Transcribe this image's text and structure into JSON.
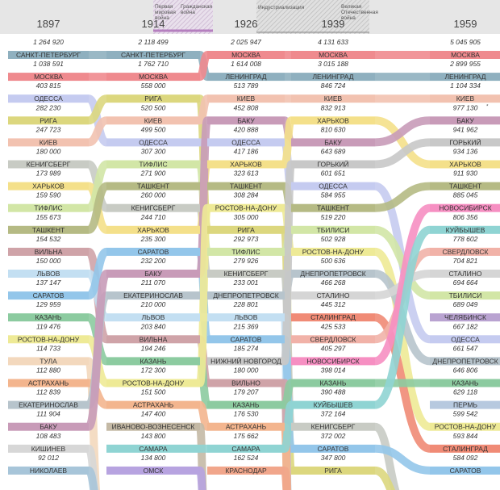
{
  "chart_data": {
    "type": "bump",
    "years": [
      "1897",
      "1914",
      "1926",
      "1939",
      "1959"
    ],
    "periods": [
      {
        "label": "Первая мировая война"
      },
      {
        "label": "Гражданская война"
      },
      {
        "label": "Индустриализация"
      },
      {
        "label": "Великая Отечественная война"
      }
    ],
    "columns": [
      [
        {
          "city": "САНКТ-ПЕТЕРБУРГ",
          "value": "1 264 920"
        },
        {
          "city": "МОСКВА",
          "value": "1 038 591"
        },
        {
          "city": "ОДЕССА",
          "value": "403 815"
        },
        {
          "city": "РИГА",
          "value": "282 230"
        },
        {
          "city": "КИЕВ",
          "value": "247 723"
        },
        {
          "city": "КЕНИГСБЕРГ",
          "value": "180 000"
        },
        {
          "city": "ХАРЬКОВ",
          "value": "173 989"
        },
        {
          "city": "ТИФЛИС",
          "value": "159 590"
        },
        {
          "city": "ТАШКЕНТ",
          "value": "155 673"
        },
        {
          "city": "ВИЛЬНА",
          "value": "154 532"
        },
        {
          "city": "ЛЬВОВ",
          "value": "150 000"
        },
        {
          "city": "САРАТОВ",
          "value": "137 147"
        },
        {
          "city": "КАЗАНЬ",
          "value": "129 959"
        },
        {
          "city": "РОСТОВ-НА-ДОНУ",
          "value": "119 476"
        },
        {
          "city": "ТУЛА",
          "value": "114 733"
        },
        {
          "city": "АСТРАХАНЬ",
          "value": "112 880"
        },
        {
          "city": "ЕКАТЕРИНОСЛАВ",
          "value": "112 839"
        },
        {
          "city": "БАКУ",
          "value": "111 904"
        },
        {
          "city": "КИШИНЕВ",
          "value": "108 483"
        },
        {
          "city": "НИКОЛАЕВ",
          "value": "92 012"
        }
      ],
      [
        {
          "city": "САНКТ-ПЕТЕРБУРГ",
          "value": "2 118 499"
        },
        {
          "city": "МОСКВА",
          "value": "1 762 710"
        },
        {
          "city": "РИГА",
          "value": "558 000"
        },
        {
          "city": "КИЕВ",
          "value": "520 500"
        },
        {
          "city": "ОДЕССА",
          "value": "499 500"
        },
        {
          "city": "ТИФЛИС",
          "value": "307 300"
        },
        {
          "city": "ТАШКЕНТ",
          "value": "271 900"
        },
        {
          "city": "КЕНИГСБЕРГ",
          "value": "260 000"
        },
        {
          "city": "ХАРЬКОВ",
          "value": "244 710"
        },
        {
          "city": "САРАТОВ",
          "value": "235 300"
        },
        {
          "city": "БАКУ",
          "value": "232 200"
        },
        {
          "city": "ЕКАТЕРИНОСЛАВ",
          "value": "211 070"
        },
        {
          "city": "ЛЬВОВ",
          "value": "210 000"
        },
        {
          "city": "ВИЛЬНА",
          "value": "203 840"
        },
        {
          "city": "КАЗАНЬ",
          "value": "194 246"
        },
        {
          "city": "РОСТОВ-НА-ДОНУ",
          "value": "172 300"
        },
        {
          "city": "АСТРАХАНЬ",
          "value": "151 500"
        },
        {
          "city": "ИВАНОВО-ВОЗНЕСЕНСК",
          "value": "147 400"
        },
        {
          "city": "САМАРА",
          "value": "143 800"
        },
        {
          "city": "ОМСК",
          "value": "134 800"
        }
      ],
      [
        {
          "city": "МОСКВА",
          "value": "2 025 947"
        },
        {
          "city": "ЛЕНИНГРАД",
          "value": "1 614 008"
        },
        {
          "city": "КИЕВ",
          "value": "513 789"
        },
        {
          "city": "БАКУ",
          "value": "452 808"
        },
        {
          "city": "ОДЕССА",
          "value": "420 888"
        },
        {
          "city": "ХАРЬКОВ",
          "value": "417 186"
        },
        {
          "city": "ТАШКЕНТ",
          "value": "323 613"
        },
        {
          "city": "РОСТОВ-НА-ДОНУ",
          "value": "308 284"
        },
        {
          "city": "РИГА",
          "value": "305 000"
        },
        {
          "city": "ТИФЛИС",
          "value": "292 973"
        },
        {
          "city": "КЕНИГСБЕРГ",
          "value": "279 926"
        },
        {
          "city": "ДНЕПРОПЕТРОВСК",
          "value": "233 001"
        },
        {
          "city": "ЛЬВОВ",
          "value": "228 801"
        },
        {
          "city": "САРАТОВ",
          "value": "215 369"
        },
        {
          "city": "НИЖНИЙ НОВГОРОД",
          "value": "185 274"
        },
        {
          "city": "ВИЛЬНО",
          "value": "180 000"
        },
        {
          "city": "КАЗАНЬ",
          "value": "179 207"
        },
        {
          "city": "АСТРАХАНЬ",
          "value": "176 530"
        },
        {
          "city": "САМАРА",
          "value": "175 662"
        },
        {
          "city": "КРАСНОДАР",
          "value": "162 524"
        }
      ],
      [
        {
          "city": "МОСКВА",
          "value": "4 131 633"
        },
        {
          "city": "ЛЕНИНГРАД",
          "value": "3 015 188"
        },
        {
          "city": "КИЕВ",
          "value": "846 724"
        },
        {
          "city": "ХАРЬКОВ",
          "value": "832 913"
        },
        {
          "city": "БАКУ",
          "value": "810 630"
        },
        {
          "city": "ГОРЬКИЙ",
          "value": "643 689"
        },
        {
          "city": "ОДЕССА",
          "value": "601 651"
        },
        {
          "city": "ТАШКЕНТ",
          "value": "584 955"
        },
        {
          "city": "ТБИЛИСИ",
          "value": "519 220"
        },
        {
          "city": "РОСТОВ-НА-ДОНУ",
          "value": "502 928"
        },
        {
          "city": "ДНЕПРОПЕТРОВСК",
          "value": "500 636"
        },
        {
          "city": "СТАЛИНО",
          "value": "466 268"
        },
        {
          "city": "СТАЛИНГРАД",
          "value": "445 312"
        },
        {
          "city": "СВЕРДЛОВСК",
          "value": "425 533"
        },
        {
          "city": "НОВОСИБИРСК",
          "value": "405 297"
        },
        {
          "city": "КАЗАНЬ",
          "value": "398 014"
        },
        {
          "city": "КУЙБЫШЕВ",
          "value": "390 488"
        },
        {
          "city": "КЕНИГСБЕРГ",
          "value": "372 164"
        },
        {
          "city": "САРАТОВ",
          "value": "372 002"
        },
        {
          "city": "РИГА",
          "value": "347 800"
        }
      ],
      [
        {
          "city": "МОСКВА",
          "value": "5 045 905"
        },
        {
          "city": "ЛЕНИНГРАД",
          "value": "2 899 955"
        },
        {
          "city": "КИЕВ",
          "value": "1 104 334"
        },
        {
          "city": "БАКУ",
          "value": "977 130",
          "note": "*"
        },
        {
          "city": "ГОРЬКИЙ",
          "value": "941 962"
        },
        {
          "city": "ХАРЬКОВ",
          "value": "934 136"
        },
        {
          "city": "ТАШКЕНТ",
          "value": "911 930"
        },
        {
          "city": "НОВОСИБИРСК",
          "value": "885 045"
        },
        {
          "city": "КУЙБЫШЕВ",
          "value": "806 356"
        },
        {
          "city": "СВЕРДЛОВСК",
          "value": "778 602"
        },
        {
          "city": "СТАЛИНО",
          "value": "704 821"
        },
        {
          "city": "ТБИЛИСИ",
          "value": "694 664"
        },
        {
          "city": "ЧЕЛЯБИНСК",
          "value": "689 049"
        },
        {
          "city": "ОДЕССА",
          "value": "667 182"
        },
        {
          "city": "ДНЕПРОПЕТРОВСК",
          "value": "661 547"
        },
        {
          "city": "КАЗАНЬ",
          "value": "646 806"
        },
        {
          "city": "ПЕРМЬ",
          "value": "629 118"
        },
        {
          "city": "РОСТОВ-НА-ДОНУ",
          "value": "599 542"
        },
        {
          "city": "СТАЛИНГРАД",
          "value": "593 844"
        },
        {
          "city": "САРАТОВ",
          "value": "584 092"
        }
      ]
    ],
    "colors": {
      "САНКТ-ПЕТЕРБУРГ": "#8fb0bf",
      "МОСКВА": "#ef8a8e",
      "ОДЕССА": "#c5cbf0",
      "РИГА": "#dcd77e",
      "КИЕВ": "#f2c2b0",
      "КЕНИГСБЕРГ": "#c8cbc4",
      "ХАРЬКОВ": "#f4e08a",
      "ТИФЛИС": "#d2e6a6",
      "ТАШКЕНТ": "#b5ba84",
      "ВИЛЬНА": "#cfa3a8",
      "ЛЬВОВ": "#c3dff2",
      "САРАТОВ": "#93c6ea",
      "КАЗАНЬ": "#8ccba0",
      "РОСТОВ-НА-ДОНУ": "#eeea96",
      "ТУЛА": "#f3d8bd",
      "АСТРАХАНЬ": "#f3b58e",
      "ЕКАТЕРИНОСЛАВ": "#b7c4cc",
      "БАКУ": "#c89bb8",
      "КИШИНЕВ": "#d7d7d7",
      "НИКОЛАЕВ": "#a7c5d9",
      "ЛЕНИНГРАД": "#8fb0bf",
      "ИВАНОВО-ВОЗНЕСЕНСК": "#c4b9a5",
      "САМАРА": "#8fd4d3",
      "ОМСК": "#b7a3e0",
      "ДНЕПРОПЕТРОВСК": "#b7c4cc",
      "НИЖНИЙ НОВГОРОД": "#c8c8c8",
      "ВИЛЬНО": "#cfa3a8",
      "КРАСНОДАР": "#f1a68b",
      "ГОРЬКИЙ": "#c8c8c8",
      "ТБИЛИСИ": "#d2e6a6",
      "СТАЛИНО": "#d5d5d5",
      "СТАЛИНГРАД": "#f08b76",
      "СВЕРДЛОВСК": "#f1b2a8",
      "НОВОСИБИРСК": "#f68fc2",
      "КУЙБЫШЕВ": "#8fd4d3",
      "ЧЕЛЯБИНСК": "#b9a3d1",
      "ПЕРМЬ": "#b7c9df"
    }
  }
}
